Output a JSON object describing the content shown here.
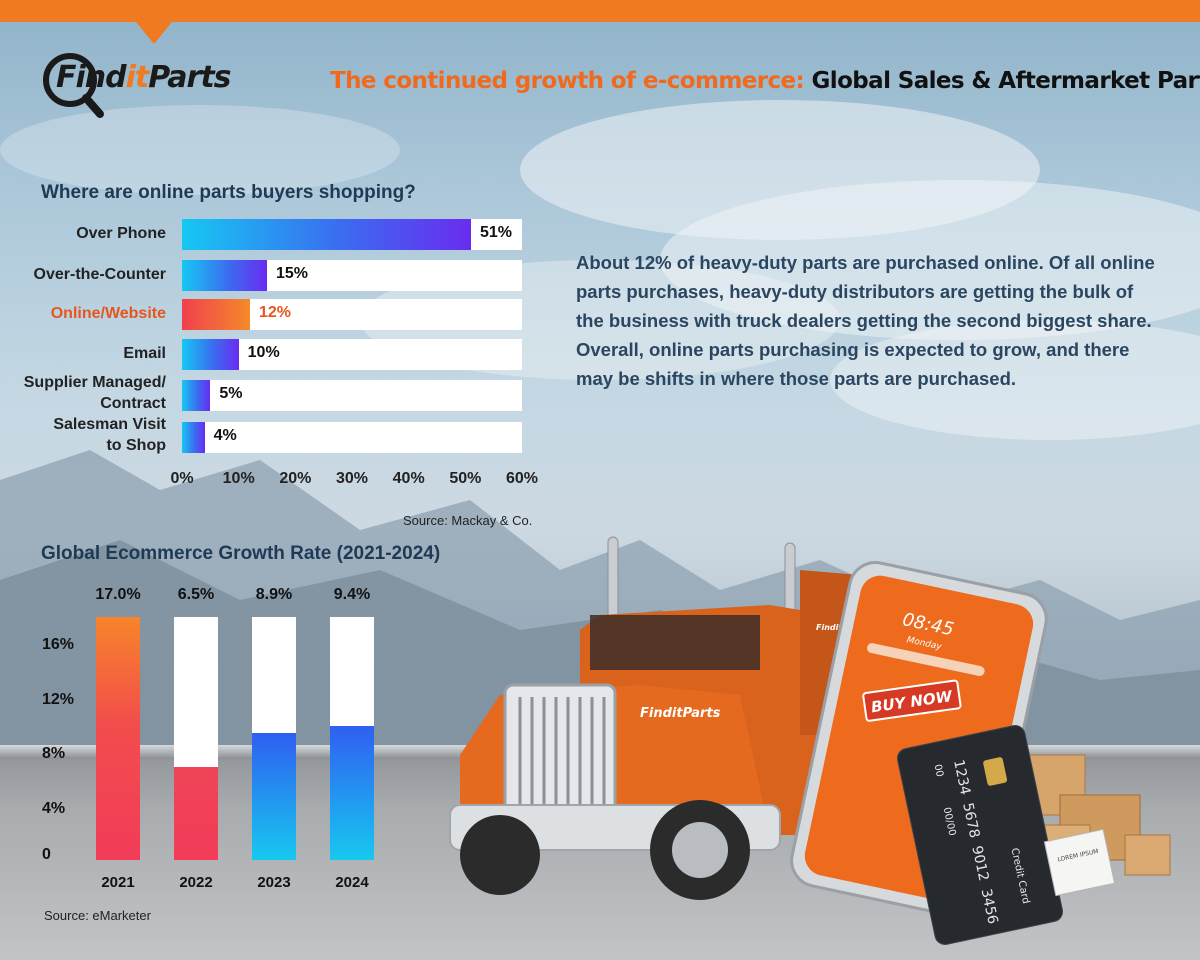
{
  "brand": {
    "logo_part1": "Find",
    "logo_part2": "it",
    "logo_part3": "Parts"
  },
  "header": {
    "title_part1": "The continued growth of e-commerce:",
    "title_part2": " Global Sales & Aftermarket Parts"
  },
  "colors": {
    "accent": "#ef7a22",
    "highlight": "#e8551e",
    "heading": "#1f3a55"
  },
  "summary": "About 12% of heavy-duty parts are purchased online. Of all online parts purchases, heavy-duty distributors are getting the bulk of the business with truck dealers getting the second biggest share.  Overall, online parts purchasing is expected to grow, and there may be shifts in where those parts are purchased.",
  "illustration": {
    "truck_brand": "FinditParts",
    "phone_time": "08:45",
    "phone_day": "Monday",
    "buy_button": "BUY NOW",
    "card_title": "Credit Card",
    "card_number": [
      "1234",
      "5678",
      "9012",
      "3456"
    ],
    "card_short": "00",
    "card_expiry": "00/00",
    "receipt_text": "LOREM IPSUM"
  },
  "chart_data": [
    {
      "type": "bar",
      "orientation": "horizontal",
      "title": "Where are online parts buyers shopping?",
      "categories": [
        "Over Phone",
        "Over-the-Counter",
        "Online/Website",
        "Email",
        "Supplier Managed/ Contract",
        "Salesman Visit to Shop"
      ],
      "category_lines": [
        [
          "Over Phone"
        ],
        [
          "Over-the-Counter"
        ],
        [
          "Online/Website"
        ],
        [
          "Email"
        ],
        [
          "Supplier Managed/",
          "Contract"
        ],
        [
          "Salesman Visit",
          "to Shop"
        ]
      ],
      "values": [
        51,
        15,
        12,
        10,
        5,
        4
      ],
      "value_labels": [
        "51%",
        "15%",
        "12%",
        "10%",
        "5%",
        "4%"
      ],
      "highlight_index": 2,
      "xlim": [
        0,
        60
      ],
      "xticks": [
        "0%",
        "10%",
        "20%",
        "30%",
        "40%",
        "50%",
        "60%"
      ],
      "source": "Source: Mackay & Co."
    },
    {
      "type": "bar",
      "orientation": "vertical",
      "title": "Global Ecommerce Growth Rate (2021-2024)",
      "categories": [
        "2021",
        "2022",
        "2023",
        "2024"
      ],
      "values": [
        17.0,
        6.5,
        8.9,
        9.4
      ],
      "value_labels": [
        "17.0%",
        "6.5%",
        "8.9%",
        "9.4%"
      ],
      "ylim": [
        0,
        17
      ],
      "yticks": [
        "0",
        "4%",
        "8%",
        "12%",
        "16%"
      ],
      "source": "Source: eMarketer"
    }
  ]
}
